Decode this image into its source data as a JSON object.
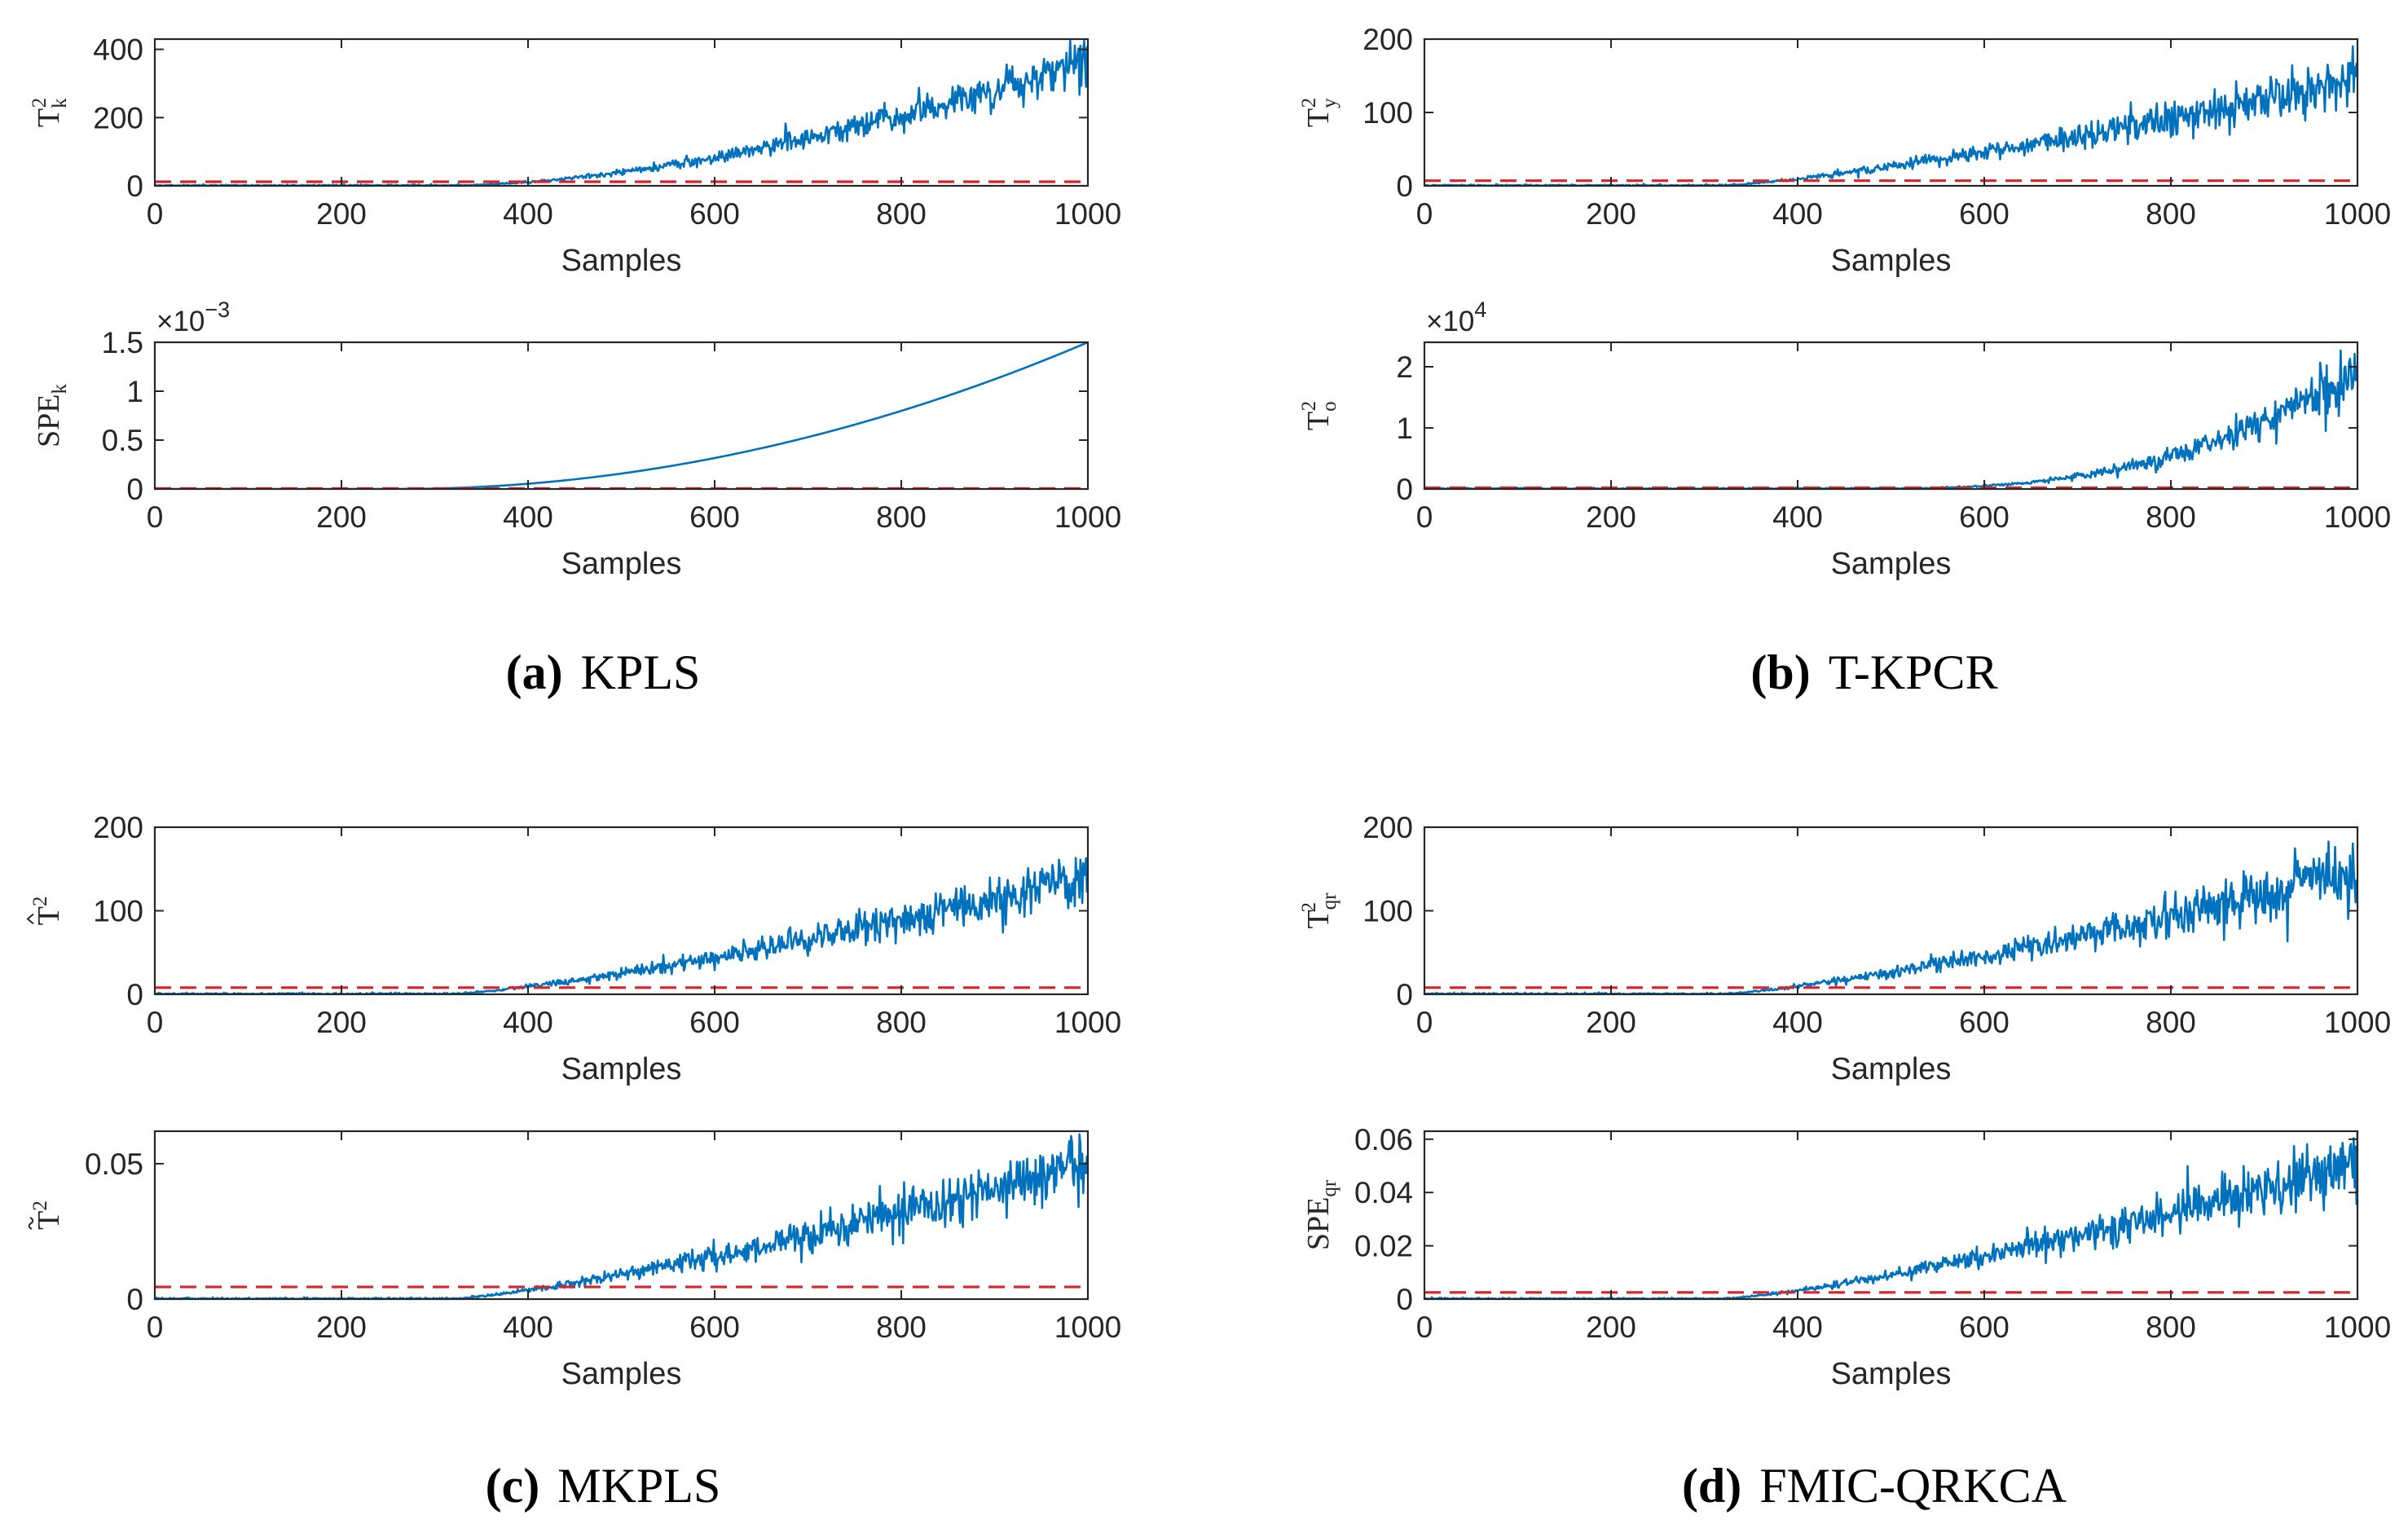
{
  "chart_data": [
    {
      "panel": "a",
      "caption_label": "(a)",
      "caption_title": "KPLS",
      "subplot": 1,
      "type": "line",
      "ylabel": "T",
      "ylabel_sup": "2",
      "ylabel_sub": "k",
      "ylabel_accent": "",
      "xlabel": "Samples",
      "xlim": [
        0,
        1000
      ],
      "ylim": [
        0,
        430
      ],
      "xticks": [
        0,
        200,
        400,
        600,
        800,
        1000
      ],
      "xtick_labels": [
        "0",
        "200",
        "400",
        "600",
        "800",
        "1000"
      ],
      "yticks": [
        0,
        200,
        400
      ],
      "ytick_labels": [
        "0",
        "200",
        "400"
      ],
      "exponent_label": "",
      "fault_start": 320,
      "final_mean": 370,
      "power": 1.7,
      "noise": 0.1,
      "threshold": 12,
      "seed": 11,
      "series": [
        {
          "name": "statistic",
          "color": "#0072BD",
          "style": "solid"
        },
        {
          "name": "control limit",
          "color": "#D9232A",
          "style": "dashed"
        }
      ]
    },
    {
      "panel": "a",
      "subplot": 2,
      "type": "line",
      "ylabel": "SPE",
      "ylabel_sup": "",
      "ylabel_sub": "k",
      "ylabel_accent": "",
      "xlabel": "Samples",
      "xlim": [
        0,
        1000
      ],
      "ylim": [
        0,
        1.5
      ],
      "xticks": [
        0,
        200,
        400,
        600,
        800,
        1000
      ],
      "xtick_labels": [
        "0",
        "200",
        "400",
        "600",
        "800",
        "1000"
      ],
      "yticks": [
        0,
        0.5,
        1,
        1.5
      ],
      "ytick_labels": [
        "0",
        "0.5",
        "1",
        "1.5"
      ],
      "exponent_label": "×10",
      "exponent_power": "−3",
      "fault_start": 260,
      "final_mean": 1.5,
      "power": 2.0,
      "noise": 0.0,
      "threshold": 0.005,
      "seed": 12,
      "series": [
        {
          "name": "statistic",
          "color": "#0072BD",
          "style": "solid"
        },
        {
          "name": "control limit",
          "color": "#D9232A",
          "style": "dashed"
        }
      ]
    },
    {
      "panel": "b",
      "caption_label": "(b)",
      "caption_title": "T-KPCR",
      "subplot": 1,
      "type": "line",
      "ylabel": "T",
      "ylabel_sup": "2",
      "ylabel_sub": "y",
      "ylabel_accent": "",
      "xlabel": "Samples",
      "xlim": [
        0,
        1000
      ],
      "ylim": [
        0,
        200
      ],
      "xticks": [
        0,
        200,
        400,
        600,
        800,
        1000
      ],
      "xtick_labels": [
        "0",
        "200",
        "400",
        "600",
        "800",
        "1000"
      ],
      "yticks": [
        0,
        100,
        200
      ],
      "ytick_labels": [
        "0",
        "100",
        "200"
      ],
      "exponent_label": "",
      "fault_start": 320,
      "final_mean": 145,
      "power": 1.3,
      "noise": 0.13,
      "threshold": 7,
      "seed": 21,
      "series": [
        {
          "name": "statistic",
          "color": "#0072BD",
          "style": "solid"
        },
        {
          "name": "control limit",
          "color": "#D9232A",
          "style": "dashed"
        }
      ]
    },
    {
      "panel": "b",
      "subplot": 2,
      "type": "line",
      "ylabel": "T",
      "ylabel_sup": "2",
      "ylabel_sub": "o",
      "ylabel_accent": "",
      "xlabel": "Samples",
      "xlim": [
        0,
        1000
      ],
      "ylim": [
        0,
        2.4
      ],
      "xticks": [
        0,
        200,
        400,
        600,
        800,
        1000
      ],
      "xtick_labels": [
        "0",
        "200",
        "400",
        "600",
        "800",
        "1000"
      ],
      "yticks": [
        0,
        1,
        2
      ],
      "ytick_labels": [
        "0",
        "1",
        "2"
      ],
      "exponent_label": "×10",
      "exponent_power": "4",
      "fault_start": 480,
      "final_mean": 1.9,
      "power": 2.6,
      "noise": 0.13,
      "threshold": 0.02,
      "seed": 22,
      "series": [
        {
          "name": "statistic",
          "color": "#0072BD",
          "style": "solid"
        },
        {
          "name": "control limit",
          "color": "#D9232A",
          "style": "dashed"
        }
      ]
    },
    {
      "panel": "c",
      "caption_label": "(c)",
      "caption_title": "MKPLS",
      "subplot": 1,
      "type": "line",
      "ylabel": "T",
      "ylabel_sup": "2",
      "ylabel_sub": "",
      "ylabel_accent": "hat",
      "xlabel": "Samples",
      "xlim": [
        0,
        1000
      ],
      "ylim": [
        0,
        200
      ],
      "xticks": [
        0,
        200,
        400,
        600,
        800,
        1000
      ],
      "xtick_labels": [
        "0",
        "200",
        "400",
        "600",
        "800",
        "1000"
      ],
      "yticks": [
        0,
        100,
        200
      ],
      "ytick_labels": [
        "0",
        "100",
        "200"
      ],
      "exponent_label": "",
      "fault_start": 320,
      "final_mean": 140,
      "power": 1.3,
      "noise": 0.13,
      "threshold": 8,
      "seed": 31,
      "series": [
        {
          "name": "statistic",
          "color": "#0072BD",
          "style": "solid"
        },
        {
          "name": "control limit",
          "color": "#D9232A",
          "style": "dashed"
        }
      ]
    },
    {
      "panel": "c",
      "subplot": 2,
      "type": "line",
      "ylabel": "T",
      "ylabel_sup": "2",
      "ylabel_sub": "",
      "ylabel_accent": "tilde",
      "xlabel": "Samples",
      "xlim": [
        0,
        1000
      ],
      "ylim": [
        0,
        0.062
      ],
      "xticks": [
        0,
        200,
        400,
        600,
        800,
        1000
      ],
      "xtick_labels": [
        "0",
        "200",
        "400",
        "600",
        "800",
        "1000"
      ],
      "yticks": [
        0,
        0.05
      ],
      "ytick_labels": [
        "0",
        "0.05"
      ],
      "exponent_label": "",
      "fault_start": 320,
      "final_mean": 0.05,
      "power": 1.3,
      "noise": 0.13,
      "threshold": 0.0045,
      "seed": 32,
      "series": [
        {
          "name": "statistic",
          "color": "#0072BD",
          "style": "solid"
        },
        {
          "name": "control limit",
          "color": "#D9232A",
          "style": "dashed"
        }
      ]
    },
    {
      "panel": "d",
      "caption_label": "(d)",
      "caption_title": "FMIC-QRKCA",
      "subplot": 1,
      "type": "line",
      "ylabel": "T",
      "ylabel_sup": "2",
      "ylabel_sub": "qr",
      "ylabel_accent": "",
      "xlabel": "Samples",
      "xlim": [
        0,
        1000
      ],
      "ylim": [
        0,
        200
      ],
      "xticks": [
        0,
        200,
        400,
        600,
        800,
        1000
      ],
      "xtick_labels": [
        "0",
        "200",
        "400",
        "600",
        "800",
        "1000"
      ],
      "yticks": [
        0,
        100,
        200
      ],
      "ytick_labels": [
        "0",
        "100",
        "200"
      ],
      "exponent_label": "",
      "fault_start": 320,
      "final_mean": 145,
      "power": 1.3,
      "noise": 0.13,
      "threshold": 8,
      "seed": 41,
      "series": [
        {
          "name": "statistic",
          "color": "#0072BD",
          "style": "solid"
        },
        {
          "name": "control limit",
          "color": "#D9232A",
          "style": "dashed"
        }
      ]
    },
    {
      "panel": "d",
      "subplot": 2,
      "type": "line",
      "ylabel": "SPE",
      "ylabel_sup": "",
      "ylabel_sub": "qr",
      "ylabel_accent": "",
      "xlabel": "Samples",
      "xlim": [
        0,
        1000
      ],
      "ylim": [
        0,
        0.063
      ],
      "xticks": [
        0,
        200,
        400,
        600,
        800,
        1000
      ],
      "xtick_labels": [
        "0",
        "200",
        "400",
        "600",
        "800",
        "1000"
      ],
      "yticks": [
        0,
        0.02,
        0.04,
        0.06
      ],
      "ytick_labels": [
        "0",
        "0.02",
        "0.04",
        "0.06"
      ],
      "exponent_label": "",
      "fault_start": 320,
      "final_mean": 0.05,
      "power": 1.3,
      "noise": 0.13,
      "threshold": 0.0025,
      "seed": 42,
      "series": [
        {
          "name": "statistic",
          "color": "#0072BD",
          "style": "solid"
        },
        {
          "name": "control limit",
          "color": "#D9232A",
          "style": "dashed"
        }
      ]
    }
  ]
}
